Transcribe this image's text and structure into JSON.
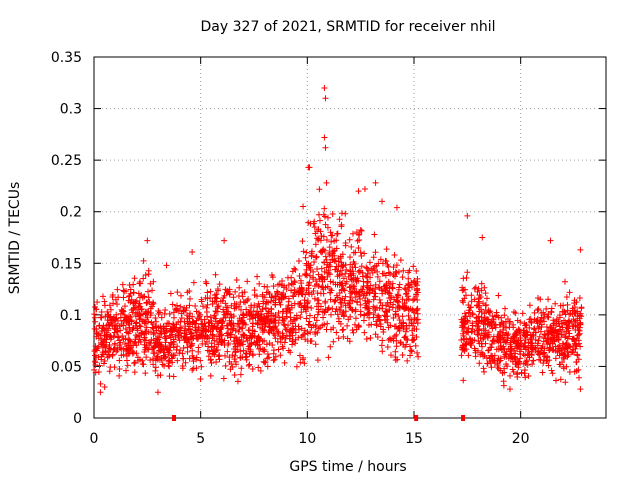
{
  "chart_data": {
    "type": "scatter",
    "title": "Day 327 of 2021, SRMTID for receiver nhil",
    "xlabel": "GPS time / hours",
    "ylabel": "SRMTID / TECUs",
    "xlim": [
      0,
      24
    ],
    "ylim": [
      0,
      0.35
    ],
    "xticks": [
      0,
      5,
      10,
      15,
      20
    ],
    "yticks": [
      0,
      0.05,
      0.1,
      0.15,
      0.2,
      0.25,
      0.3,
      0.35
    ],
    "ytick_labels": [
      "0",
      "0.05",
      "0.1",
      "0.15",
      "0.2",
      "0.25",
      "0.3",
      "0.35"
    ],
    "grid": true,
    "marker": "+",
    "color": "#ff0000",
    "gap_hours": [
      15.2,
      17.2
    ],
    "zero_markers_x": [
      3.75,
      15.1,
      17.3
    ],
    "envelope": [
      {
        "x": 0,
        "mid": 0.07,
        "spread": 0.03
      },
      {
        "x": 1,
        "mid": 0.085,
        "spread": 0.035
      },
      {
        "x": 2,
        "mid": 0.09,
        "spread": 0.04
      },
      {
        "x": 2.5,
        "mid": 0.1,
        "spread": 0.045
      },
      {
        "x": 3,
        "mid": 0.07,
        "spread": 0.03
      },
      {
        "x": 4,
        "mid": 0.085,
        "spread": 0.035
      },
      {
        "x": 5,
        "mid": 0.085,
        "spread": 0.035
      },
      {
        "x": 6,
        "mid": 0.09,
        "spread": 0.04
      },
      {
        "x": 7,
        "mid": 0.085,
        "spread": 0.035
      },
      {
        "x": 8,
        "mid": 0.09,
        "spread": 0.035
      },
      {
        "x": 9,
        "mid": 0.1,
        "spread": 0.04
      },
      {
        "x": 10,
        "mid": 0.12,
        "spread": 0.055
      },
      {
        "x": 10.8,
        "mid": 0.14,
        "spread": 0.07
      },
      {
        "x": 11.5,
        "mid": 0.13,
        "spread": 0.055
      },
      {
        "x": 12.5,
        "mid": 0.13,
        "spread": 0.05
      },
      {
        "x": 13.5,
        "mid": 0.12,
        "spread": 0.05
      },
      {
        "x": 14.5,
        "mid": 0.1,
        "spread": 0.04
      },
      {
        "x": 15.2,
        "mid": 0.1,
        "spread": 0.035
      },
      {
        "x": 17.2,
        "mid": 0.09,
        "spread": 0.04
      },
      {
        "x": 18,
        "mid": 0.09,
        "spread": 0.035
      },
      {
        "x": 19,
        "mid": 0.075,
        "spread": 0.03
      },
      {
        "x": 20,
        "mid": 0.07,
        "spread": 0.025
      },
      {
        "x": 21,
        "mid": 0.08,
        "spread": 0.03
      },
      {
        "x": 22,
        "mid": 0.08,
        "spread": 0.035
      },
      {
        "x": 22.8,
        "mid": 0.085,
        "spread": 0.04
      }
    ],
    "outliers": [
      {
        "x": 10.8,
        "y": 0.32
      },
      {
        "x": 10.85,
        "y": 0.31
      },
      {
        "x": 10.8,
        "y": 0.272
      },
      {
        "x": 10.85,
        "y": 0.262
      },
      {
        "x": 10.05,
        "y": 0.243
      },
      {
        "x": 10.1,
        "y": 0.243
      },
      {
        "x": 13.2,
        "y": 0.228
      },
      {
        "x": 12.4,
        "y": 0.22
      },
      {
        "x": 12.7,
        "y": 0.222
      },
      {
        "x": 10.9,
        "y": 0.228
      },
      {
        "x": 9.8,
        "y": 0.205
      },
      {
        "x": 14.2,
        "y": 0.204
      },
      {
        "x": 13.5,
        "y": 0.21
      },
      {
        "x": 17.5,
        "y": 0.196
      },
      {
        "x": 2.5,
        "y": 0.172
      },
      {
        "x": 6.1,
        "y": 0.172
      },
      {
        "x": 21.4,
        "y": 0.172
      },
      {
        "x": 22.8,
        "y": 0.163
      },
      {
        "x": 4.6,
        "y": 0.161
      },
      {
        "x": 3.4,
        "y": 0.148
      },
      {
        "x": 18.2,
        "y": 0.175
      },
      {
        "x": 0.5,
        "y": 0.03
      },
      {
        "x": 0.3,
        "y": 0.025
      },
      {
        "x": 3.0,
        "y": 0.025
      },
      {
        "x": 22.8,
        "y": 0.028
      },
      {
        "x": 19.5,
        "y": 0.028
      }
    ]
  }
}
